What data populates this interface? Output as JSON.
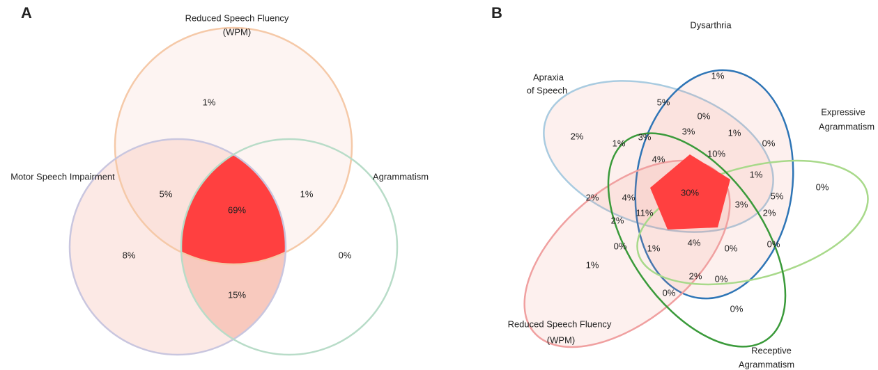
{
  "panel_a": {
    "label": "A",
    "sets": [
      [
        "Reduced Speech Fluency",
        "(WPM)"
      ],
      [
        "Motor Speech Impairment"
      ],
      [
        "Agrammatism"
      ]
    ],
    "regions": [
      "1%",
      "5%",
      "69%",
      "1%",
      "8%",
      "15%",
      "0%"
    ]
  },
  "panel_b": {
    "label": "B",
    "sets": [
      [
        "Dysarthria"
      ],
      [
        "Apraxia",
        "of Speech"
      ],
      [
        "Expressive",
        "Agrammatism"
      ],
      [
        "Receptive",
        "Agrammatism"
      ],
      [
        "Reduced Speech Fluency",
        "(WPM)"
      ]
    ],
    "regions": [
      "1%",
      "5%",
      "0%",
      "2%",
      "1%",
      "3%",
      "3%",
      "1%",
      "0%",
      "10%",
      "4%",
      "1%",
      "0%",
      "2%",
      "4%",
      "30%",
      "5%",
      "3%",
      "11%",
      "2%",
      "2%",
      "0%",
      "1%",
      "4%",
      "0%",
      "0%",
      "1%",
      "2%",
      "0%",
      "0%",
      "0%"
    ]
  }
}
